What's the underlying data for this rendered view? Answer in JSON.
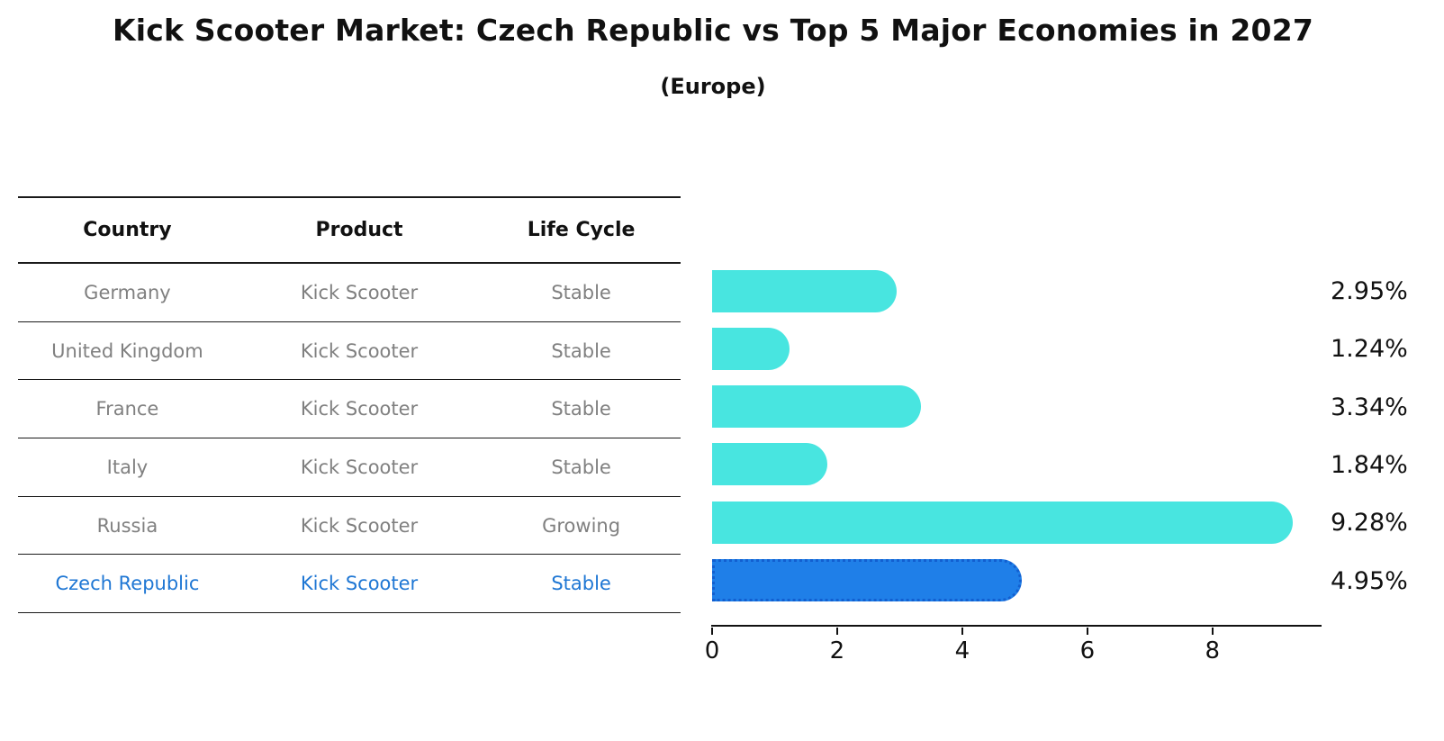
{
  "title": "Kick Scooter Market: Czech Republic vs Top 5 Major Economies in 2027",
  "subtitle": "(Europe)",
  "table": {
    "headers": [
      "Country",
      "Product",
      "Life Cycle"
    ],
    "rows": [
      {
        "country": "Germany",
        "product": "Kick Scooter",
        "life_cycle": "Stable",
        "highlight": false
      },
      {
        "country": "United Kingdom",
        "product": "Kick Scooter",
        "life_cycle": "Stable",
        "highlight": false
      },
      {
        "country": "France",
        "product": "Kick Scooter",
        "life_cycle": "Stable",
        "highlight": false
      },
      {
        "country": "Italy",
        "product": "Kick Scooter",
        "life_cycle": "Stable",
        "highlight": false
      },
      {
        "country": "Russia",
        "product": "Kick Scooter",
        "life_cycle": "Growing",
        "highlight": false
      },
      {
        "country": "Czech Republic",
        "product": "Kick Scooter",
        "life_cycle": "Stable",
        "highlight": true
      }
    ]
  },
  "chart_data": {
    "type": "bar",
    "orientation": "horizontal",
    "categories": [
      "Germany",
      "United Kingdom",
      "France",
      "Italy",
      "Russia",
      "Czech Republic"
    ],
    "values": [
      2.95,
      1.24,
      3.34,
      1.84,
      9.28,
      4.95
    ],
    "value_labels": [
      "2.95%",
      "1.24%",
      "3.34%",
      "1.84%",
      "9.28%",
      "4.95%"
    ],
    "title": "Kick Scooter Market: Czech Republic vs Top 5 Major Economies in 2027",
    "subtitle": "(Europe)",
    "xlabel": "",
    "ylabel": "",
    "xlim": [
      0,
      9.73
    ],
    "xticks": [
      0,
      2,
      4,
      6,
      8
    ],
    "grid": false,
    "legend": "none",
    "bar_color": "#48e5e0",
    "highlight_color": "#1f7fe8",
    "highlight_index": 5,
    "highlight_label_color": "#1f77d4"
  }
}
